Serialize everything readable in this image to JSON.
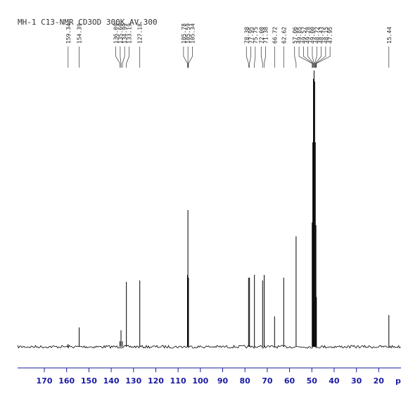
{
  "chart_data": {
    "type": "spectrum",
    "title": "MH-1 C13-NMR CD3OD 300K AV-300",
    "x_label": "p",
    "x": [
      159.34,
      154.39,
      136.09,
      135.6,
      134.99,
      133.19,
      127.18,
      105.78,
      105.59,
      105.34,
      78.38,
      77.95,
      75.75,
      72.08,
      71.38,
      66.72,
      62.62,
      57.06,
      49.85,
      49.57,
      49.28,
      49.0,
      48.72,
      48.43,
      48.15,
      47.95,
      15.44
    ],
    "x_labels": [
      "159.34",
      "154.39",
      "136.09",
      "135.60",
      "134.99",
      "133.19",
      "127.18",
      "105.78",
      "105.59",
      "105.34",
      "78.38",
      "77.95",
      "75.75",
      "72.08",
      "71.38",
      "66.72",
      "62.62",
      "57.06",
      "49.85",
      "49.57",
      "49.28",
      "49.00",
      "48.72",
      "48.43",
      "48.15",
      "47.95",
      "15.44"
    ],
    "values": [
      1,
      7,
      2,
      6,
      2,
      23.5,
      24,
      26,
      49.5,
      25,
      25,
      25,
      26,
      24,
      26,
      11,
      25,
      40,
      45,
      74,
      97,
      100,
      96,
      74,
      44,
      18,
      11.5
    ],
    "xlim": [
      182,
      10
    ],
    "xticks": [
      170,
      160,
      150,
      140,
      130,
      120,
      110,
      100,
      90,
      80,
      70,
      60,
      50,
      40,
      30,
      20
    ],
    "ylim": [
      0,
      100
    ],
    "color": "#000000",
    "axis_color": "#1a1aa6"
  }
}
